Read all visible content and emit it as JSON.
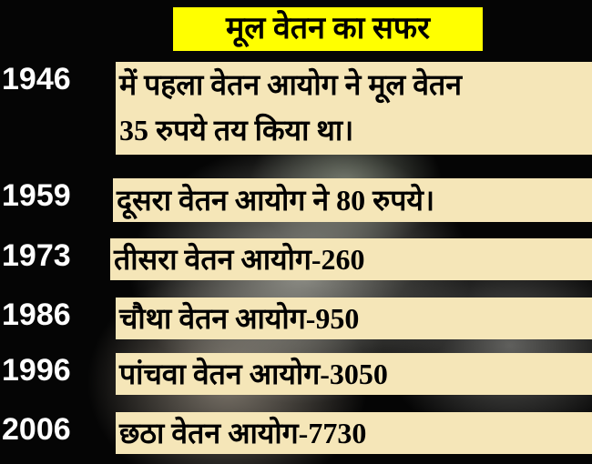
{
  "title": "मूल वेतन का सफर",
  "colors": {
    "title_bg": "#ffff00",
    "box_bg": "#f5e6b8",
    "year_text": "#ffffff"
  },
  "entries": [
    {
      "year": "1946",
      "lines": [
        "में पहला वेतन आयोग ने मूल वेतन",
        "35 रुपये तय किया था।"
      ]
    },
    {
      "year": "1959",
      "lines": [
        "दूसरा वेतन आयोग ने 80 रुपये।"
      ]
    },
    {
      "year": "1973",
      "lines": [
        "तीसरा वेतन आयोग-260"
      ]
    },
    {
      "year": "1986",
      "lines": [
        "चौथा वेतन आयोग-950"
      ]
    },
    {
      "year": "1996",
      "lines": [
        "पांचवा वेतन आयोग-3050"
      ]
    },
    {
      "year": "2006",
      "lines": [
        "छठा वेतन आयोग-7730"
      ]
    }
  ]
}
